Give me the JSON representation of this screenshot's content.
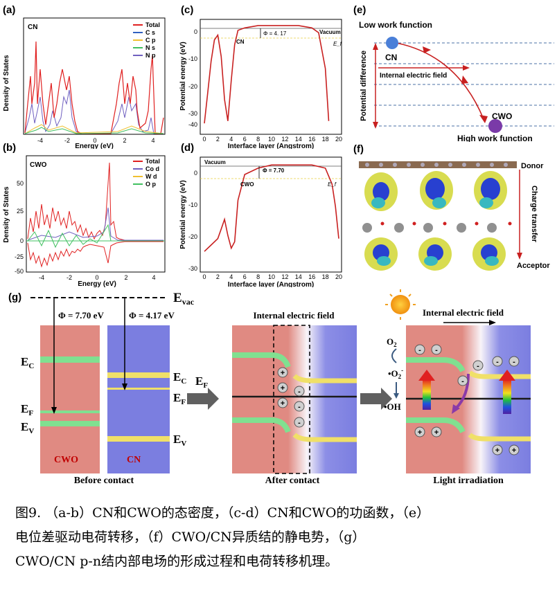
{
  "panels": {
    "a": {
      "letter": "(a)",
      "tag": "CN",
      "ylabel": "Density of States",
      "xlabel": "Energy (eV)",
      "xticks": [
        "-4",
        "-2",
        "0",
        "2",
        "4"
      ],
      "legend": [
        {
          "name": "Total",
          "color": "#e02020"
        },
        {
          "name": "C s",
          "color": "#3060c0"
        },
        {
          "name": "C p",
          "color": "#f0c030"
        },
        {
          "name": "N s",
          "color": "#40c060"
        },
        {
          "name": "N p",
          "color": "#7060c0"
        }
      ]
    },
    "b": {
      "letter": "(b)",
      "tag": "CWO",
      "ylabel": "Density of States",
      "xlabel": "Energy (eV)",
      "xticks": [
        "-4",
        "-2",
        "0",
        "2",
        "4"
      ],
      "yticks": [
        "50",
        "25",
        "0",
        "-25",
        "-50"
      ],
      "legend": [
        {
          "name": "Total",
          "color": "#e02020"
        },
        {
          "name": "Co d",
          "color": "#7060c0"
        },
        {
          "name": "W d",
          "color": "#f0c030"
        },
        {
          "name": "O p",
          "color": "#40c060"
        }
      ]
    },
    "c": {
      "letter": "(c)",
      "ylabel": "Potential energy (eV)",
      "xlabel": "Interface layer (Angstrom)",
      "yticks": [
        "0",
        "-10",
        "-20",
        "-30",
        "-40"
      ],
      "xticks": [
        "0",
        "2",
        "4",
        "6",
        "8",
        "10",
        "12",
        "14",
        "16",
        "18",
        "20"
      ],
      "phi": "Φ = 4. 17",
      "vacuum": "Vacuum",
      "mat": "CN",
      "ef": "E_f"
    },
    "d": {
      "letter": "(d)",
      "ylabel": "Potential energy (eV)",
      "xlabel": "Interface layer (Angstrom)",
      "yticks": [
        "0",
        "-10",
        "-20",
        "-30"
      ],
      "xticks": [
        "0",
        "2",
        "4",
        "6",
        "8",
        "10",
        "12",
        "14",
        "16",
        "18",
        "20"
      ],
      "phi": "Φ = 7.70",
      "vacuum": "Vacuum",
      "mat": "CWO",
      "ef": "E_f"
    },
    "e": {
      "letter": "(e)",
      "low": "Low work function",
      "high": "High work function",
      "cn": "CN",
      "cwo": "CWO",
      "pd": "Potential difference",
      "ief": "Internal electric field"
    },
    "f": {
      "letter": "(f)",
      "donor": "Donor",
      "acceptor": "Acceptor",
      "ct": "Charge transfer"
    },
    "g": {
      "letter": "(g)",
      "evac": "E",
      "evac_sub": "vac",
      "phi1": "Φ = 7.70 eV",
      "phi2": "Φ = 4.17 eV",
      "ec": "E",
      "ec_sub": "C",
      "ef": "E",
      "ef_sub": "F",
      "ev": "E",
      "ev_sub": "V",
      "cwo": "CWO",
      "cn": "CN",
      "before": "Before contact",
      "after": "After contact",
      "light": "Light irradiation",
      "ief1": "Internal electric field",
      "ief2": "Internal electric field",
      "o2": "O",
      "o2_sub": "2",
      "o2r": "•O",
      "o2r_sub": "2",
      "o2r_sup": "-",
      "oh": "•OH"
    }
  },
  "chart_data": [
    {
      "type": "line",
      "title": "(c) CN",
      "xlabel": "Interface layer (Angstrom)",
      "ylabel": "Potential energy (eV)",
      "xlim": [
        0,
        20
      ],
      "ylim": [
        -42,
        5
      ],
      "x": [
        0,
        0.5,
        1,
        1.5,
        2,
        2.5,
        3,
        3.5,
        4,
        4.5,
        5,
        6,
        8,
        10,
        12,
        14,
        16,
        17,
        18,
        18.5
      ],
      "values": [
        -38,
        -25,
        -12,
        -3,
        -1,
        -10,
        -28,
        -37,
        -20,
        -5,
        1,
        2,
        3,
        3,
        3,
        3,
        2,
        0,
        -15,
        -37
      ]
    },
    {
      "type": "line",
      "title": "(d) CWO",
      "xlabel": "Interface layer (Angstrom)",
      "ylabel": "Potential energy (eV)",
      "xlim": [
        0,
        20
      ],
      "ylim": [
        -30,
        5
      ],
      "x": [
        0,
        1,
        2,
        2.5,
        3,
        3.5,
        4,
        4.5,
        5,
        6,
        8,
        10,
        12,
        14,
        16,
        18,
        19,
        19.5,
        20
      ],
      "values": [
        -24,
        -22,
        -20,
        -17,
        -14,
        -19,
        -23,
        -21,
        -8,
        0,
        2,
        3,
        3,
        3,
        3,
        2,
        -3,
        -10,
        -20
      ]
    }
  ],
  "caption": {
    "line1": "图9. （a-b）CN和CWO的态密度，（c-d）CN和CWO的功函数，（e）",
    "line2": "电位差驱动电荷转移，（f）CWO/CN异质结的静电势，（g）",
    "line3": "CWO/CN p-n结内部电场的形成过程和电荷转移机理。"
  }
}
